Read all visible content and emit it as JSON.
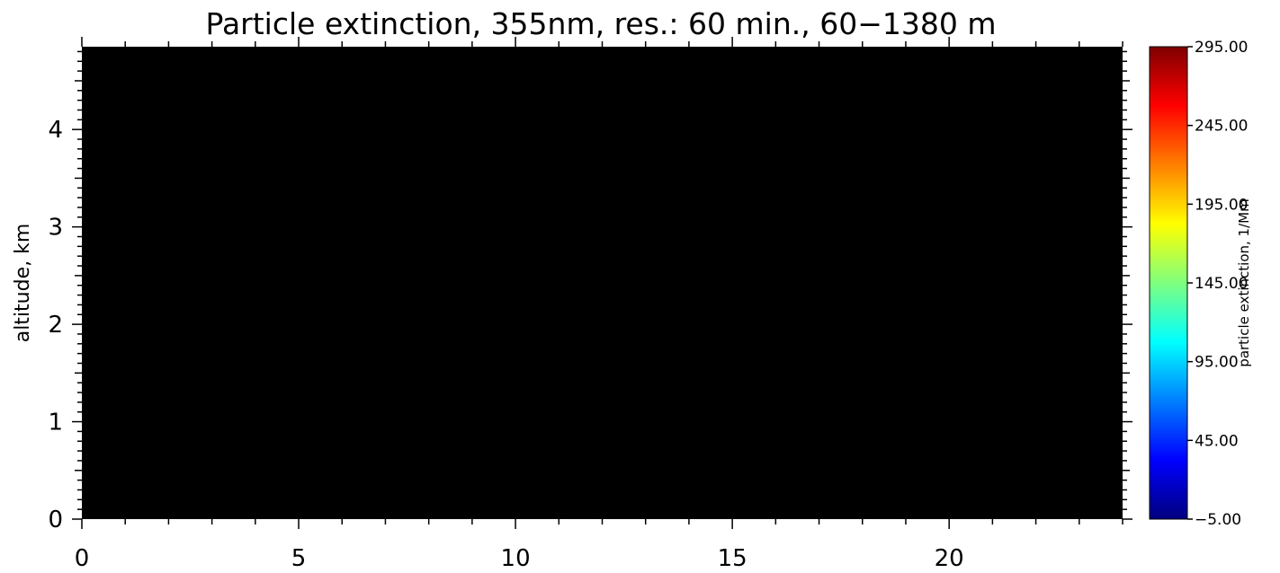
{
  "chart_data": {
    "type": "heatmap",
    "title": "Particle extinction, 355nm, res.: 60 min.,  60−1380 m",
    "xlabel": "",
    "ylabel": "altitude, km",
    "xlim": [
      0,
      24
    ],
    "ylim": [
      0,
      4.85
    ],
    "x_ticks": [
      "0",
      "5",
      "10",
      "15",
      "20"
    ],
    "x_tick_values": [
      0,
      5,
      10,
      15,
      20
    ],
    "y_ticks": [
      "0",
      "1",
      "2",
      "3",
      "4"
    ],
    "y_tick_values": [
      0,
      1,
      2,
      3,
      4
    ],
    "plot_fill": "#000000",
    "colorbar": {
      "label": "particle extinction, 1/Mm",
      "range": [
        -5.0,
        295.0
      ],
      "ticks": [
        "−5.00",
        "45.00",
        "95.00",
        "145.00",
        "195.00",
        "245.00",
        "295.00"
      ],
      "tick_values": [
        -5,
        45,
        95,
        145,
        195,
        245,
        295
      ],
      "colormap": [
        "#00007f",
        "#0000ff",
        "#007fff",
        "#00ffff",
        "#7fff7f",
        "#ffff00",
        "#ff7f00",
        "#ff0000",
        "#7f0000"
      ]
    }
  }
}
